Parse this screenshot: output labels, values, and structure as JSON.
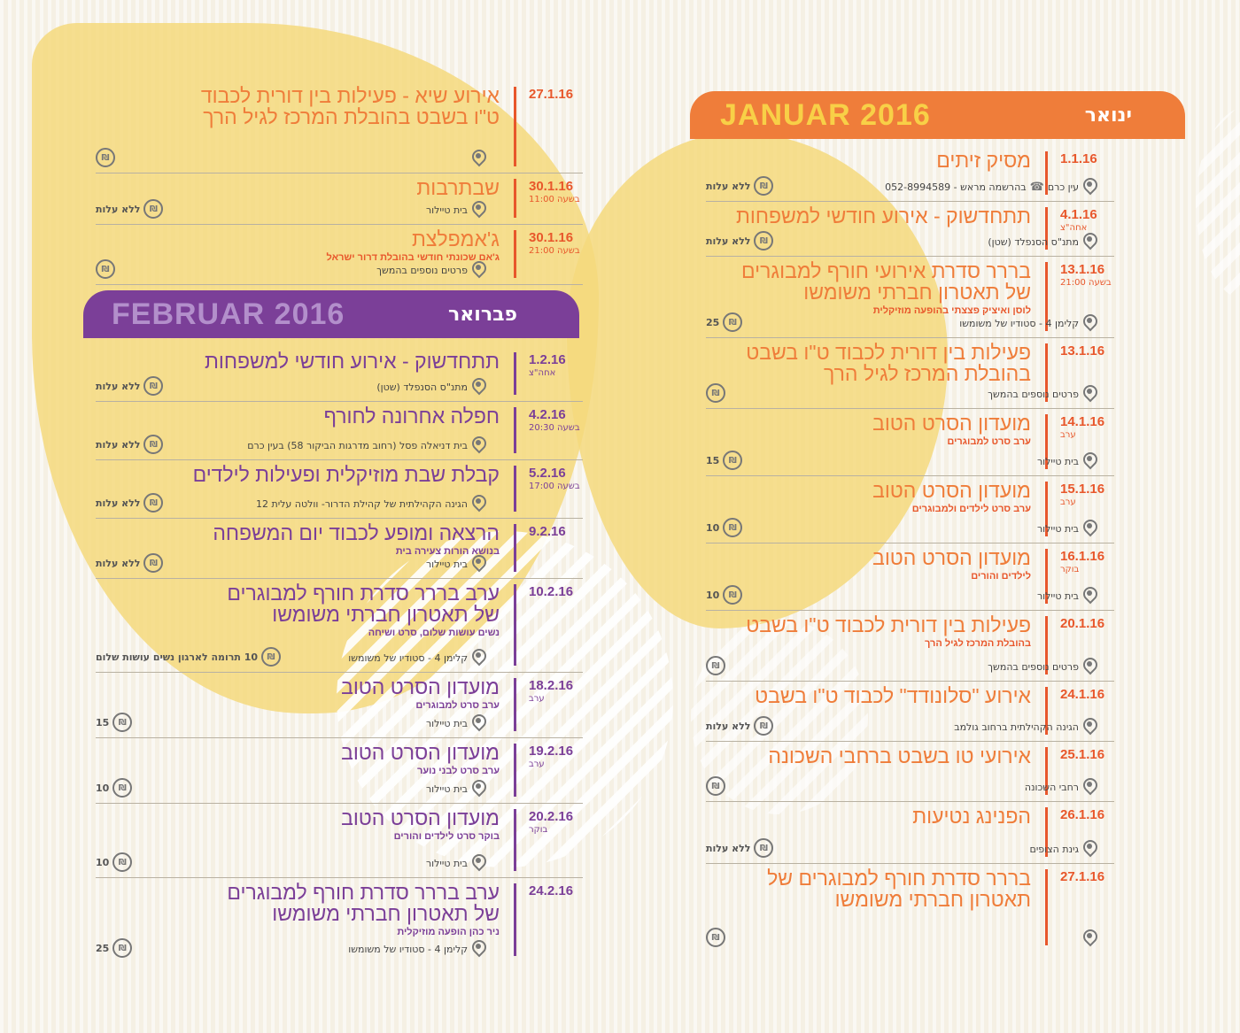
{
  "january": {
    "header_latin": "JANUAR 2016",
    "header_hebrew": "ינואר",
    "events": [
      {
        "date": "1.1.16",
        "sub": "",
        "title": [
          "מסיק זיתים"
        ],
        "note": "",
        "location": "עין כרם",
        "phone": "בהרשמה מראש - 052-8994589",
        "price": "ללא עלות"
      },
      {
        "date": "4.1.16",
        "sub": "אחה\"צ",
        "title": [
          "תתחדשוק - אירוע חודשי למשפחות"
        ],
        "note": "",
        "location": "מתנ\"ס הסנפלד (שטן)",
        "phone": "",
        "price": "ללא עלות"
      },
      {
        "date": "13.1.16",
        "sub": "בשעה 21:00",
        "title": [
          "בררר סדרת אירועי חורף למבוגרים",
          "של תאטרון חברתי משומשו"
        ],
        "note": "לוסן ואיציק פצצתי בהופעה מוזיקלית",
        "location": "קלימן 4 - סטודיו של משומשו",
        "phone": "",
        "price": "25"
      },
      {
        "date": "13.1.16",
        "sub": "",
        "title": [
          "פעילות בין דורית לכבוד ט\"ו בשבט",
          "בהובלת המרכז לגיל הרך"
        ],
        "note": "",
        "location": "פרטים נוספים בהמשך",
        "phone": "",
        "price": ""
      },
      {
        "date": "14.1.16",
        "sub": "ערב",
        "title": [
          "מועדון הסרט הטוב"
        ],
        "note": "ערב סרט למבוגרים",
        "location": "בית טיילור",
        "phone": "",
        "price": "15"
      },
      {
        "date": "15.1.16",
        "sub": "ערב",
        "title": [
          "מועדון הסרט הטוב"
        ],
        "note": "ערב סרט לילדים ולמבוגרים",
        "location": "בית טיילור",
        "phone": "",
        "price": "10"
      },
      {
        "date": "16.1.16",
        "sub": "בוקר",
        "title": [
          "מועדון הסרט הטוב"
        ],
        "note": "לילדים והורים",
        "location": "בית טיילור",
        "phone": "",
        "price": "10"
      },
      {
        "date": "20.1.16",
        "sub": "",
        "title": [
          "פעילות בין דורית לכבוד ט\"ו בשבט"
        ],
        "note": "בהובלת המרכז לגיל הרך",
        "location": "פרטים נוספים בהמשך",
        "phone": "",
        "price": ""
      },
      {
        "date": "24.1.16",
        "sub": "",
        "title": [
          "אירוע \"סלונודד\" לכבוד ט\"ו בשבט"
        ],
        "note": "",
        "location": "הגינה הקהילתית ברחוב גולמב",
        "phone": "",
        "price": "ללא עלות"
      },
      {
        "date": "25.1.16",
        "sub": "",
        "title": [
          "אירועי טו בשבט ברחבי השכונה"
        ],
        "note": "",
        "location": "רחבי השכונה",
        "phone": "",
        "price": ""
      },
      {
        "date": "26.1.16",
        "sub": "",
        "title": [
          "הפנינג נטיעות"
        ],
        "note": "",
        "location": "גינת הצופים",
        "phone": "",
        "price": "ללא עלות"
      },
      {
        "date": "27.1.16",
        "sub": "",
        "title": [
          "בררר סדרת חורף למבוגרים של",
          "תאטרון חברתי משומשו"
        ],
        "note": "",
        "location": "",
        "phone": "",
        "price": ""
      }
    ]
  },
  "continued": {
    "events": [
      {
        "date": "27.1.16",
        "sub": "",
        "title": [
          "אירוע שיא - פעילות בין דורית לכבוד",
          "ט\"ו בשבט בהובלת המרכז לגיל הרך"
        ],
        "note": "",
        "location": "",
        "price": ""
      },
      {
        "date": "30.1.16",
        "sub": "בשעה 11:00",
        "title": [
          "שבתרבות"
        ],
        "note": "",
        "location": "בית טיילור",
        "price": "ללא עלות"
      },
      {
        "date": "30.1.16",
        "sub": "בשעה 21:00",
        "title": [
          "ג'אמפלצת"
        ],
        "note": "ג'אם שכונתי חודשי בהובלת דרור ישראל",
        "location": "פרטים נוספים בהמשך",
        "price": ""
      }
    ]
  },
  "february": {
    "header_latin": "FEBRUAR 2016",
    "header_hebrew": "פברואר",
    "events": [
      {
        "date": "1.2.16",
        "sub": "אחה\"צ",
        "title": [
          "תתחדשוק - אירוע חודשי למשפחות"
        ],
        "note": "",
        "location": "מתנ\"ס הסנפלד (שטן)",
        "price": "ללא עלות"
      },
      {
        "date": "4.2.16",
        "sub": "בשעה 20:30",
        "title": [
          "חפלה אחרונה לחורף"
        ],
        "note": "",
        "location": "בית דניאלה פסל (רחוב מדרגות הביקור 58) בעין כרם",
        "price": "ללא עלות"
      },
      {
        "date": "5.2.16",
        "sub": "בשעה 17:00",
        "title": [
          "קבלת שבת מוזיקלית ופעילות לילדים"
        ],
        "note": "",
        "location": "הגינה הקהילתית של קהילת הדרור- וולטה עלית 12",
        "price": "ללא עלות"
      },
      {
        "date": "9.2.16",
        "sub": "",
        "title": [
          "הרצאה ומופע לכבוד יום המשפחה"
        ],
        "note": "בנושא הורות צעירה בית",
        "location": "בית טיילור",
        "price": "ללא עלות"
      },
      {
        "date": "10.2.16",
        "sub": "",
        "title": [
          "ערב בררר סדרת חורף למבוגרים",
          "של תאטרון חברתי משומשו"
        ],
        "note": "נשים עושות שלום, סרט ושיחה",
        "location": "קלימן 4 - סטודיו של משומשו",
        "price": "10 תרומה לארגון נשים עושות שלום"
      },
      {
        "date": "18.2.16",
        "sub": "ערב",
        "title": [
          "מועדון הסרט הטוב"
        ],
        "note": "ערב סרט למבוגרים",
        "location": "בית טיילור",
        "price": "15"
      },
      {
        "date": "19.2.16",
        "sub": "ערב",
        "title": [
          "מועדון הסרט הטוב"
        ],
        "note": "ערב סרט לבני נוער",
        "location": "בית טיילור",
        "price": "10"
      },
      {
        "date": "20.2.16",
        "sub": "בוקר",
        "title": [
          "מועדון הסרט הטוב"
        ],
        "note": "בוקר סרט לילדים והורים",
        "location": "בית טיילור",
        "price": "10"
      },
      {
        "date": "24.2.16",
        "sub": "",
        "title": [
          "ערב  בררר סדרת חורף למבוגרים",
          "של תאטרון חברתי משומשו"
        ],
        "note": "ניר כהן הופעה מוזיקלית",
        "location": "קלימן 4 - סטודיו של משומשו",
        "price": "25"
      }
    ]
  }
}
